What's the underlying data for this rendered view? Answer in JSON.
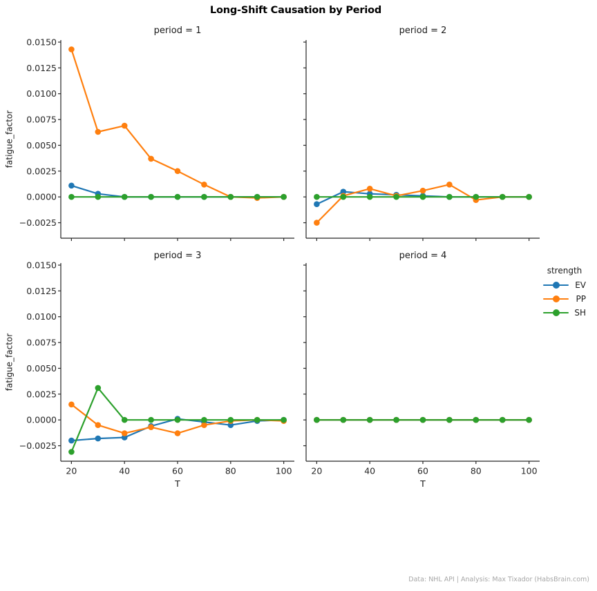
{
  "figure": {
    "title": "Long-Shift Causation by Period",
    "footer": "Data: NHL API | Analysis: Max Tixador (HabsBrain.com)"
  },
  "chart_data": {
    "type": "line",
    "title": "Long-Shift Causation by Period",
    "facet_by": "period",
    "xlabel": "T",
    "ylabel": "fatigue_factor",
    "legend_title": "strength",
    "legend": [
      "EV",
      "PP",
      "SH"
    ],
    "legend_position": "right of period-4 panel",
    "grid": false,
    "series_colors": {
      "EV": "#1f77b4",
      "PP": "#ff7f0e",
      "SH": "#2ca02c"
    },
    "x": [
      20,
      30,
      40,
      50,
      60,
      70,
      80,
      90,
      100
    ],
    "xticks": [
      20,
      40,
      60,
      80,
      100
    ],
    "yticks": [
      -0.0025,
      0.0,
      0.0025,
      0.005,
      0.0075,
      0.01,
      0.0125,
      0.015
    ],
    "ytick_labels": [
      "−0.0025",
      "0.0000",
      "0.0025",
      "0.0050",
      "0.0075",
      "0.0100",
      "0.0125",
      "0.0150"
    ],
    "xlim": [
      16,
      104
    ],
    "ylim": [
      -0.004,
      0.0152
    ],
    "panels": [
      {
        "title": "period = 1",
        "series": [
          {
            "name": "EV",
            "values": [
              0.0011,
              0.0003,
              0.0,
              0.0,
              0.0,
              0.0,
              0.0,
              0.0,
              0.0
            ]
          },
          {
            "name": "PP",
            "values": [
              0.0143,
              0.0063,
              0.0069,
              0.0037,
              0.0025,
              0.0012,
              0.0,
              -0.0001,
              0.0
            ]
          },
          {
            "name": "SH",
            "values": [
              0.0,
              0.0,
              0.0,
              0.0,
              0.0,
              0.0,
              0.0,
              0.0,
              0.0
            ]
          }
        ]
      },
      {
        "title": "period = 2",
        "series": [
          {
            "name": "EV",
            "values": [
              -0.0007,
              0.0005,
              0.0003,
              0.0002,
              0.0001,
              0.0,
              0.0,
              0.0,
              0.0
            ]
          },
          {
            "name": "PP",
            "values": [
              -0.0025,
              0.0001,
              0.0008,
              0.0001,
              0.0006,
              0.0012,
              -0.0003,
              0.0,
              0.0
            ]
          },
          {
            "name": "SH",
            "values": [
              0.0,
              0.0,
              0.0,
              0.0,
              0.0,
              0.0,
              0.0,
              0.0,
              0.0
            ]
          }
        ]
      },
      {
        "title": "period = 3",
        "series": [
          {
            "name": "EV",
            "values": [
              -0.002,
              -0.0018,
              -0.0017,
              -0.0006,
              0.0001,
              -0.0002,
              -0.0005,
              -0.0001,
              0.0
            ]
          },
          {
            "name": "PP",
            "values": [
              0.0015,
              -0.0005,
              -0.0013,
              -0.0007,
              -0.0013,
              -0.0005,
              -0.0001,
              0.0,
              -0.0001
            ]
          },
          {
            "name": "SH",
            "values": [
              -0.0031,
              0.0031,
              0.0,
              0.0,
              0.0,
              0.0,
              0.0,
              0.0,
              0.0
            ]
          }
        ]
      },
      {
        "title": "period = 4",
        "series": [
          {
            "name": "EV",
            "values": [
              0.0,
              0.0,
              0.0,
              0.0,
              0.0,
              0.0,
              0.0,
              0.0,
              0.0
            ]
          },
          {
            "name": "PP",
            "values": [
              0.0,
              0.0,
              0.0,
              0.0,
              0.0,
              0.0,
              0.0,
              0.0,
              0.0
            ]
          },
          {
            "name": "SH",
            "values": [
              0.0,
              0.0,
              0.0,
              0.0,
              0.0,
              0.0,
              0.0,
              0.0,
              0.0
            ]
          }
        ]
      }
    ]
  }
}
